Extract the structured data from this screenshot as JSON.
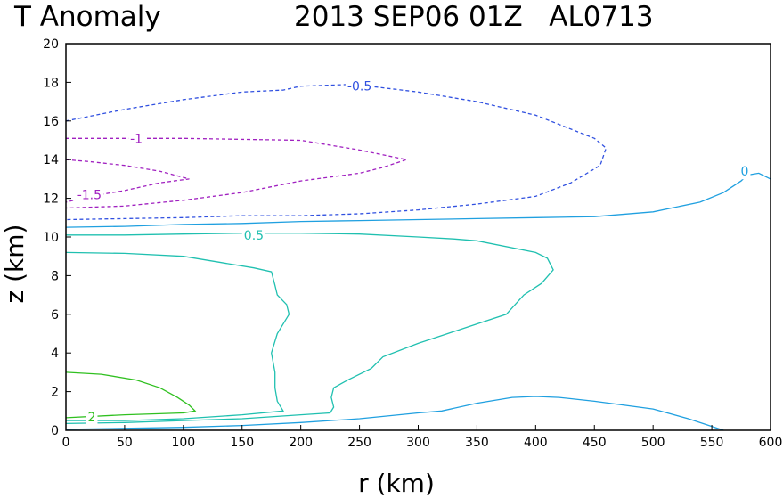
{
  "chart_data": {
    "type": "contour",
    "title_left": "T Anomaly",
    "title_right": "2013 SEP06 01Z   AL0713",
    "xlabel": "r (km)",
    "ylabel": "z (km)",
    "xlim": [
      0,
      600
    ],
    "ylim": [
      0,
      20
    ],
    "xticks": [
      "0",
      "50",
      "100",
      "150",
      "200",
      "250",
      "300",
      "350",
      "400",
      "450",
      "500",
      "550",
      "600"
    ],
    "yticks": [
      "0",
      "2",
      "4",
      "6",
      "8",
      "10",
      "12",
      "14",
      "16",
      "18",
      "20"
    ],
    "grid": false,
    "legend": "none",
    "contours": [
      {
        "level": "-0.5",
        "color": "#3050e0",
        "dashed": true,
        "label_at": [
          250,
          17.8
        ],
        "points": [
          [
            0,
            16
          ],
          [
            50,
            16.6
          ],
          [
            100,
            17.1
          ],
          [
            150,
            17.5
          ],
          [
            185,
            17.6
          ],
          [
            200,
            17.8
          ],
          [
            245,
            17.9
          ],
          [
            300,
            17.5
          ],
          [
            350,
            17.0
          ],
          [
            400,
            16.3
          ],
          [
            450,
            15.1
          ],
          [
            460,
            14.6
          ],
          [
            455,
            13.7
          ],
          [
            430,
            12.8
          ],
          [
            400,
            12.1
          ],
          [
            350,
            11.7
          ],
          [
            300,
            11.4
          ],
          [
            250,
            11.2
          ],
          [
            200,
            11.1
          ],
          [
            150,
            11.1
          ],
          [
            100,
            11.0
          ],
          [
            50,
            10.95
          ],
          [
            0,
            10.9
          ]
        ]
      },
      {
        "level": "-1",
        "color": "#a020c0",
        "dashed": true,
        "label_at": [
          60,
          15.1
        ],
        "points": [
          [
            0,
            15.1
          ],
          [
            50,
            15.1
          ],
          [
            100,
            15.1
          ],
          [
            200,
            15.0
          ],
          [
            250,
            14.5
          ],
          [
            290,
            14.0
          ],
          [
            270,
            13.6
          ],
          [
            250,
            13.3
          ],
          [
            200,
            12.9
          ],
          [
            150,
            12.3
          ],
          [
            100,
            11.9
          ],
          [
            50,
            11.6
          ],
          [
            0,
            11.5
          ]
        ]
      },
      {
        "level": "-1.5",
        "color": "#a020c0",
        "dashed": true,
        "label_at": [
          20,
          12.2
        ],
        "points": [
          [
            0,
            14.0
          ],
          [
            20,
            13.9
          ],
          [
            50,
            13.7
          ],
          [
            80,
            13.4
          ],
          [
            105,
            13.0
          ],
          [
            80,
            12.8
          ],
          [
            50,
            12.4
          ],
          [
            20,
            12.1
          ],
          [
            0,
            11.8
          ]
        ]
      },
      {
        "level": "0",
        "color": "#20a0e0",
        "dashed": false,
        "label_at": [
          578,
          13.4
        ],
        "points": [
          [
            0,
            10.5
          ],
          [
            50,
            10.55
          ],
          [
            100,
            10.65
          ],
          [
            150,
            10.7
          ],
          [
            200,
            10.8
          ],
          [
            250,
            10.85
          ],
          [
            300,
            10.9
          ],
          [
            350,
            10.95
          ],
          [
            400,
            11.0
          ],
          [
            450,
            11.05
          ],
          [
            500,
            11.3
          ],
          [
            540,
            11.8
          ],
          [
            560,
            12.3
          ],
          [
            575,
            12.9
          ],
          [
            580,
            13.2
          ],
          [
            590,
            13.3
          ],
          [
            600,
            13.0
          ]
        ]
      },
      {
        "level": "0",
        "color": "#20a0e0",
        "dashed": false,
        "label_at": null,
        "points": [
          [
            0,
            0.05
          ],
          [
            50,
            0.1
          ],
          [
            100,
            0.15
          ],
          [
            150,
            0.25
          ],
          [
            200,
            0.4
          ],
          [
            250,
            0.6
          ],
          [
            300,
            0.9
          ],
          [
            320,
            1.0
          ],
          [
            350,
            1.4
          ],
          [
            380,
            1.7
          ],
          [
            400,
            1.75
          ],
          [
            420,
            1.7
          ],
          [
            450,
            1.5
          ],
          [
            500,
            1.1
          ],
          [
            530,
            0.6
          ],
          [
            560,
            0.0
          ]
        ]
      },
      {
        "level": "0.5",
        "color": "#20c0b0",
        "dashed": false,
        "label_at": [
          160,
          10.1
        ],
        "points": [
          [
            0,
            10.1
          ],
          [
            50,
            10.1
          ],
          [
            100,
            10.15
          ],
          [
            150,
            10.2
          ],
          [
            200,
            10.2
          ],
          [
            250,
            10.15
          ],
          [
            300,
            10.0
          ],
          [
            330,
            9.9
          ],
          [
            350,
            9.8
          ],
          [
            400,
            9.2
          ],
          [
            410,
            8.9
          ],
          [
            415,
            8.3
          ],
          [
            405,
            7.6
          ],
          [
            390,
            7.0
          ],
          [
            375,
            6.0
          ],
          [
            350,
            5.5
          ],
          [
            325,
            5.0
          ],
          [
            300,
            4.5
          ],
          [
            270,
            3.8
          ],
          [
            260,
            3.2
          ],
          [
            240,
            2.6
          ],
          [
            228,
            2.2
          ],
          [
            226,
            1.7
          ],
          [
            228,
            1.2
          ],
          [
            225,
            0.9
          ],
          [
            200,
            0.8
          ],
          [
            150,
            0.6
          ],
          [
            100,
            0.5
          ],
          [
            50,
            0.4
          ],
          [
            0,
            0.35
          ]
        ]
      },
      {
        "level": "0.5",
        "color": "#20c0b0",
        "dashed": false,
        "label_at": null,
        "points": [
          [
            0,
            9.2
          ],
          [
            50,
            9.15
          ],
          [
            100,
            9.0
          ],
          [
            130,
            8.7
          ],
          [
            160,
            8.4
          ],
          [
            175,
            8.2
          ],
          [
            178,
            7.5
          ],
          [
            180,
            7.0
          ],
          [
            188,
            6.5
          ],
          [
            190,
            6.0
          ],
          [
            180,
            5.0
          ],
          [
            175,
            4.0
          ],
          [
            178,
            3.0
          ],
          [
            178,
            2.2
          ],
          [
            180,
            1.5
          ],
          [
            185,
            1.0
          ],
          [
            150,
            0.8
          ],
          [
            100,
            0.6
          ],
          [
            50,
            0.5
          ],
          [
            0,
            0.5
          ]
        ]
      },
      {
        "level": "2",
        "color": "#30c020",
        "dashed": false,
        "label_at": [
          22,
          0.7
        ],
        "points": [
          [
            0,
            3.0
          ],
          [
            30,
            2.9
          ],
          [
            60,
            2.6
          ],
          [
            80,
            2.2
          ],
          [
            95,
            1.7
          ],
          [
            105,
            1.3
          ],
          [
            110,
            1.0
          ],
          [
            100,
            0.9
          ],
          [
            50,
            0.8
          ],
          [
            0,
            0.65
          ]
        ]
      }
    ]
  }
}
